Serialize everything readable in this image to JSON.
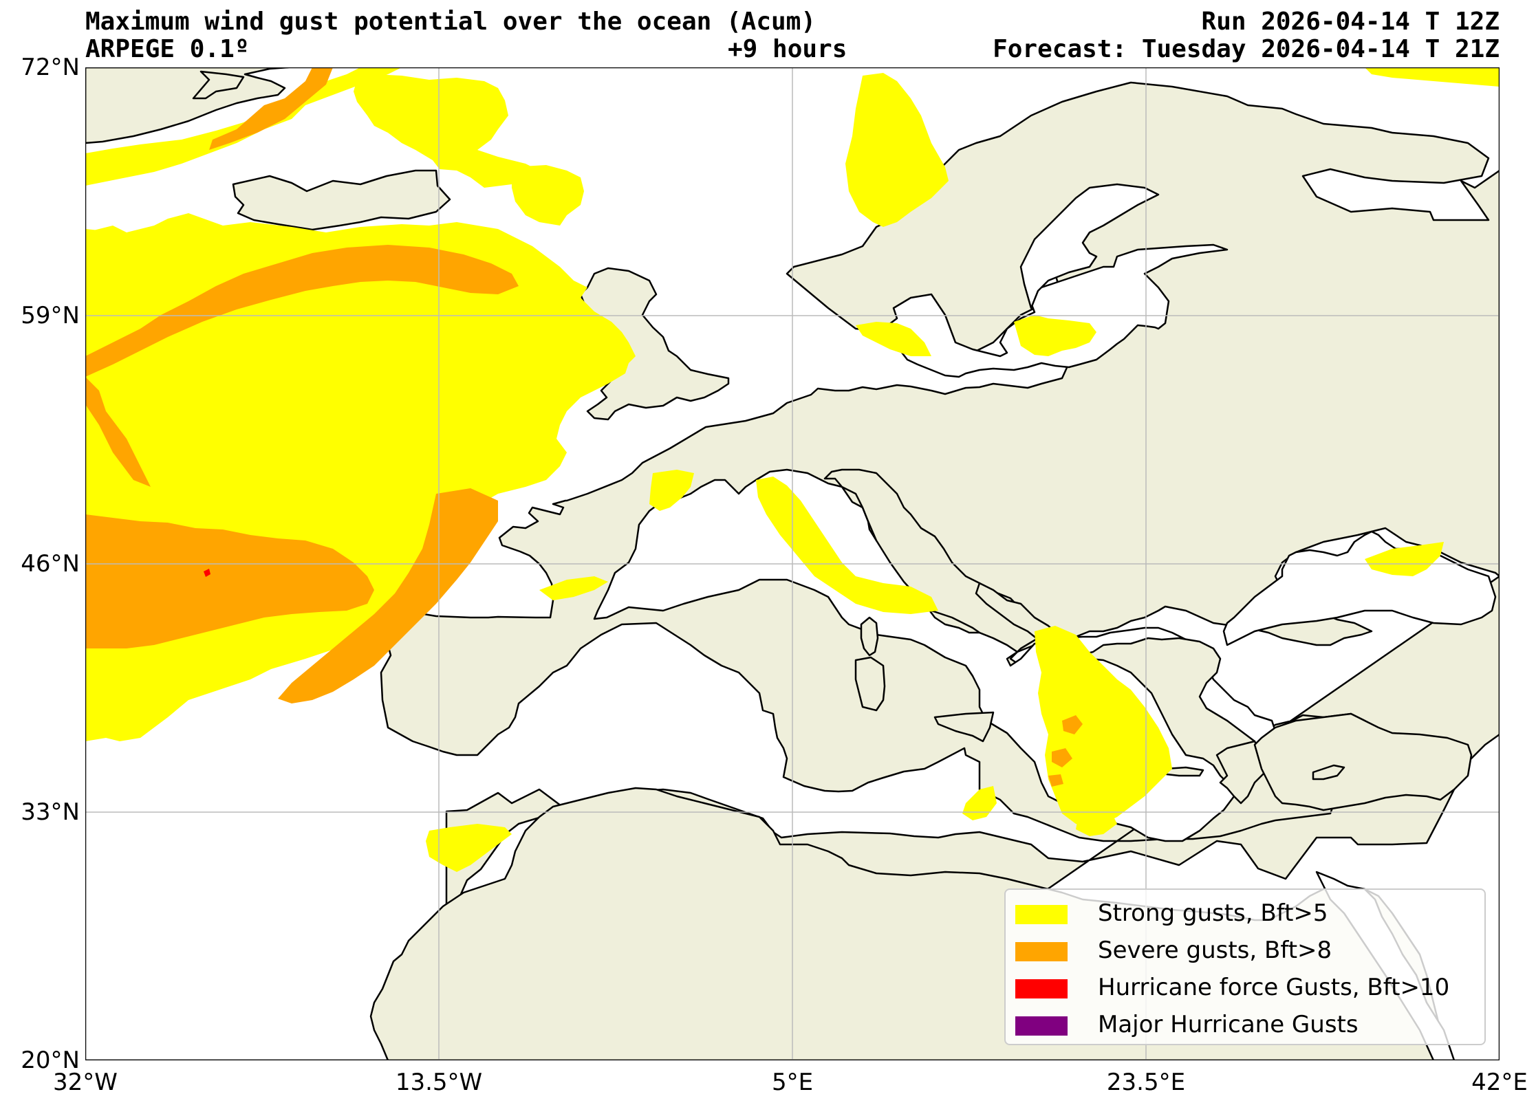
{
  "header": {
    "title": "Maximum wind gust potential over the ocean (Acum)",
    "model": "ARPEGE 0.1º",
    "lead": "+9 hours",
    "run": "Run 2026-04-14 T 12Z",
    "forecast": "Forecast: Tuesday 2026-04-14 T 21Z"
  },
  "axes": {
    "lat_labels": [
      "72°N",
      "59°N",
      "46°N",
      "33°N",
      "20°N"
    ],
    "lon_labels": [
      "32°W",
      "13.5°W",
      "5°E",
      "23.5°E",
      "42°E"
    ],
    "lat_values": [
      72,
      59,
      46,
      33,
      20
    ],
    "lon_values": [
      -32,
      -13.5,
      5,
      23.5,
      42
    ]
  },
  "map": {
    "lon_range": [
      -32,
      42
    ],
    "lat_range": [
      20,
      72
    ],
    "colors": {
      "land": "#efefdb",
      "sea": "#ffffff",
      "coast": "#000000",
      "grid": "#bbbbbb"
    }
  },
  "legend": {
    "items": [
      {
        "label": "Strong gusts, Bft>5",
        "color": "#ffff00"
      },
      {
        "label": "Severe gusts, Bft>8",
        "color": "#ffa500"
      },
      {
        "label": "Hurricane force Gusts, Bft>10",
        "color": "#ff0000"
      },
      {
        "label": "Major Hurricane Gusts",
        "color": "#800080"
      }
    ]
  }
}
